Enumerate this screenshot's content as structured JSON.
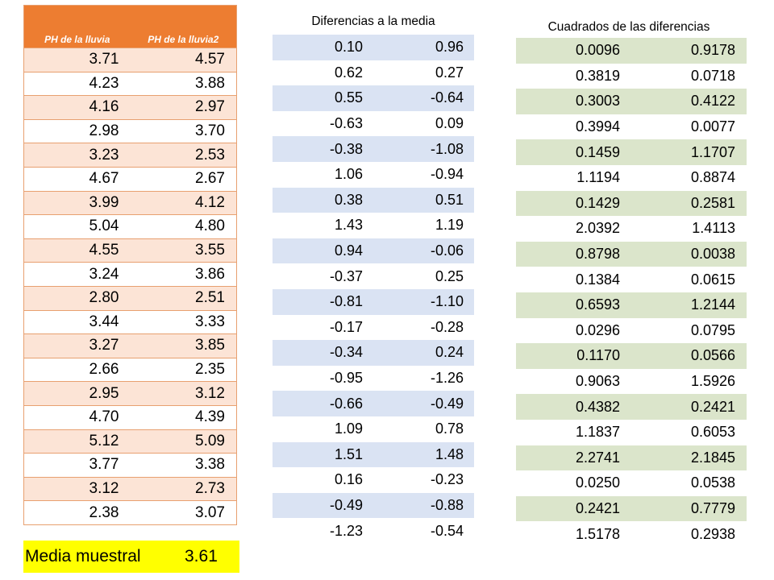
{
  "table1": {
    "headers": [
      "PH de la lluvia",
      "PH de la lluvia2"
    ],
    "rows": [
      [
        "3.71",
        "4.57"
      ],
      [
        "4.23",
        "3.88"
      ],
      [
        "4.16",
        "2.97"
      ],
      [
        "2.98",
        "3.70"
      ],
      [
        "3.23",
        "2.53"
      ],
      [
        "4.67",
        "2.67"
      ],
      [
        "3.99",
        "4.12"
      ],
      [
        "5.04",
        "4.80"
      ],
      [
        "4.55",
        "3.55"
      ],
      [
        "3.24",
        "3.86"
      ],
      [
        "2.80",
        "2.51"
      ],
      [
        "3.44",
        "3.33"
      ],
      [
        "3.27",
        "3.85"
      ],
      [
        "2.66",
        "2.35"
      ],
      [
        "2.95",
        "3.12"
      ],
      [
        "4.70",
        "4.39"
      ],
      [
        "5.12",
        "5.09"
      ],
      [
        "3.77",
        "3.38"
      ],
      [
        "3.12",
        "2.73"
      ],
      [
        "2.38",
        "3.07"
      ]
    ]
  },
  "mean": {
    "label": "Media muestral",
    "value": "3.61"
  },
  "table2": {
    "title": "Diferencias a la media",
    "rows": [
      [
        "0.10",
        "0.96"
      ],
      [
        "0.62",
        "0.27"
      ],
      [
        "0.55",
        "-0.64"
      ],
      [
        "-0.63",
        "0.09"
      ],
      [
        "-0.38",
        "-1.08"
      ],
      [
        "1.06",
        "-0.94"
      ],
      [
        "0.38",
        "0.51"
      ],
      [
        "1.43",
        "1.19"
      ],
      [
        "0.94",
        "-0.06"
      ],
      [
        "-0.37",
        "0.25"
      ],
      [
        "-0.81",
        "-1.10"
      ],
      [
        "-0.17",
        "-0.28"
      ],
      [
        "-0.34",
        "0.24"
      ],
      [
        "-0.95",
        "-1.26"
      ],
      [
        "-0.66",
        "-0.49"
      ],
      [
        "1.09",
        "0.78"
      ],
      [
        "1.51",
        "1.48"
      ],
      [
        "0.16",
        "-0.23"
      ],
      [
        "-0.49",
        "-0.88"
      ],
      [
        "-1.23",
        "-0.54"
      ]
    ]
  },
  "table3": {
    "title": "Cuadrados de las diferencias",
    "rows": [
      [
        "0.0096",
        "0.9178"
      ],
      [
        "0.3819",
        "0.0718"
      ],
      [
        "0.3003",
        "0.4122"
      ],
      [
        "0.3994",
        "0.0077"
      ],
      [
        "0.1459",
        "1.1707"
      ],
      [
        "1.1194",
        "0.8874"
      ],
      [
        "0.1429",
        "0.2581"
      ],
      [
        "2.0392",
        "1.4113"
      ],
      [
        "0.8798",
        "0.0038"
      ],
      [
        "0.1384",
        "0.0615"
      ],
      [
        "0.6593",
        "1.2144"
      ],
      [
        "0.0296",
        "0.0795"
      ],
      [
        "0.1170",
        "0.0566"
      ],
      [
        "0.9063",
        "1.5926"
      ],
      [
        "0.4382",
        "0.2421"
      ],
      [
        "1.1837",
        "0.6053"
      ],
      [
        "2.2741",
        "2.1845"
      ],
      [
        "0.0250",
        "0.0538"
      ],
      [
        "0.2421",
        "0.7779"
      ],
      [
        "1.5178",
        "0.2938"
      ]
    ]
  },
  "colors": {
    "orange_header": "#ed7d31",
    "orange_band": "#fce4d6",
    "blue_band": "#dae3f3",
    "green_band": "#dbe5cb",
    "mean_highlight": "#ffff00"
  }
}
